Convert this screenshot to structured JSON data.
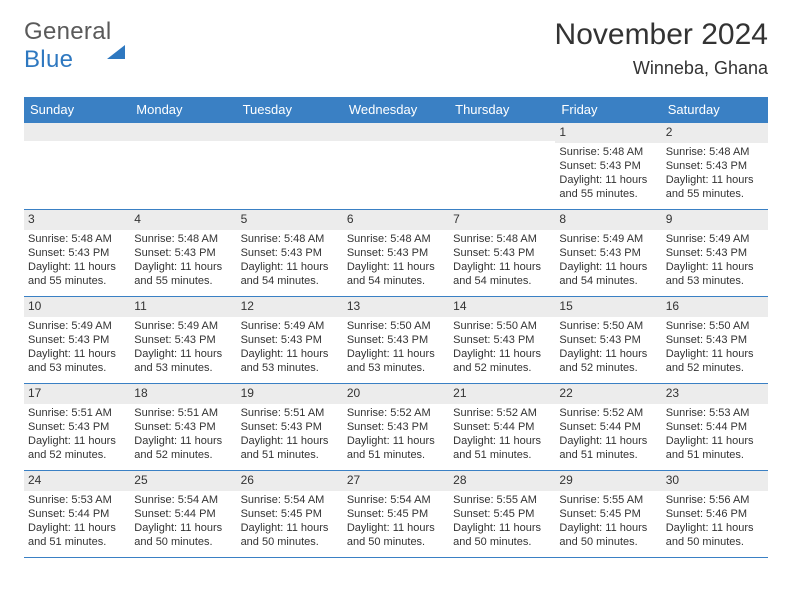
{
  "logo": {
    "word1": "General",
    "word2": "Blue"
  },
  "title": "November 2024",
  "location": "Winneba, Ghana",
  "colors": {
    "header_bg": "#3a80c4",
    "header_text": "#ffffff",
    "daynum_bg": "#ececec",
    "rule": "#3a80c4",
    "text": "#333333",
    "logo_gray": "#5a5a5a",
    "logo_blue": "#2e78c0"
  },
  "day_names": [
    "Sunday",
    "Monday",
    "Tuesday",
    "Wednesday",
    "Thursday",
    "Friday",
    "Saturday"
  ],
  "weeks": [
    [
      {
        "n": "",
        "sr": "",
        "ss": "",
        "dl": ""
      },
      {
        "n": "",
        "sr": "",
        "ss": "",
        "dl": ""
      },
      {
        "n": "",
        "sr": "",
        "ss": "",
        "dl": ""
      },
      {
        "n": "",
        "sr": "",
        "ss": "",
        "dl": ""
      },
      {
        "n": "",
        "sr": "",
        "ss": "",
        "dl": ""
      },
      {
        "n": "1",
        "sr": "Sunrise: 5:48 AM",
        "ss": "Sunset: 5:43 PM",
        "dl": "Daylight: 11 hours and 55 minutes."
      },
      {
        "n": "2",
        "sr": "Sunrise: 5:48 AM",
        "ss": "Sunset: 5:43 PM",
        "dl": "Daylight: 11 hours and 55 minutes."
      }
    ],
    [
      {
        "n": "3",
        "sr": "Sunrise: 5:48 AM",
        "ss": "Sunset: 5:43 PM",
        "dl": "Daylight: 11 hours and 55 minutes."
      },
      {
        "n": "4",
        "sr": "Sunrise: 5:48 AM",
        "ss": "Sunset: 5:43 PM",
        "dl": "Daylight: 11 hours and 55 minutes."
      },
      {
        "n": "5",
        "sr": "Sunrise: 5:48 AM",
        "ss": "Sunset: 5:43 PM",
        "dl": "Daylight: 11 hours and 54 minutes."
      },
      {
        "n": "6",
        "sr": "Sunrise: 5:48 AM",
        "ss": "Sunset: 5:43 PM",
        "dl": "Daylight: 11 hours and 54 minutes."
      },
      {
        "n": "7",
        "sr": "Sunrise: 5:48 AM",
        "ss": "Sunset: 5:43 PM",
        "dl": "Daylight: 11 hours and 54 minutes."
      },
      {
        "n": "8",
        "sr": "Sunrise: 5:49 AM",
        "ss": "Sunset: 5:43 PM",
        "dl": "Daylight: 11 hours and 54 minutes."
      },
      {
        "n": "9",
        "sr": "Sunrise: 5:49 AM",
        "ss": "Sunset: 5:43 PM",
        "dl": "Daylight: 11 hours and 53 minutes."
      }
    ],
    [
      {
        "n": "10",
        "sr": "Sunrise: 5:49 AM",
        "ss": "Sunset: 5:43 PM",
        "dl": "Daylight: 11 hours and 53 minutes."
      },
      {
        "n": "11",
        "sr": "Sunrise: 5:49 AM",
        "ss": "Sunset: 5:43 PM",
        "dl": "Daylight: 11 hours and 53 minutes."
      },
      {
        "n": "12",
        "sr": "Sunrise: 5:49 AM",
        "ss": "Sunset: 5:43 PM",
        "dl": "Daylight: 11 hours and 53 minutes."
      },
      {
        "n": "13",
        "sr": "Sunrise: 5:50 AM",
        "ss": "Sunset: 5:43 PM",
        "dl": "Daylight: 11 hours and 53 minutes."
      },
      {
        "n": "14",
        "sr": "Sunrise: 5:50 AM",
        "ss": "Sunset: 5:43 PM",
        "dl": "Daylight: 11 hours and 52 minutes."
      },
      {
        "n": "15",
        "sr": "Sunrise: 5:50 AM",
        "ss": "Sunset: 5:43 PM",
        "dl": "Daylight: 11 hours and 52 minutes."
      },
      {
        "n": "16",
        "sr": "Sunrise: 5:50 AM",
        "ss": "Sunset: 5:43 PM",
        "dl": "Daylight: 11 hours and 52 minutes."
      }
    ],
    [
      {
        "n": "17",
        "sr": "Sunrise: 5:51 AM",
        "ss": "Sunset: 5:43 PM",
        "dl": "Daylight: 11 hours and 52 minutes."
      },
      {
        "n": "18",
        "sr": "Sunrise: 5:51 AM",
        "ss": "Sunset: 5:43 PM",
        "dl": "Daylight: 11 hours and 52 minutes."
      },
      {
        "n": "19",
        "sr": "Sunrise: 5:51 AM",
        "ss": "Sunset: 5:43 PM",
        "dl": "Daylight: 11 hours and 51 minutes."
      },
      {
        "n": "20",
        "sr": "Sunrise: 5:52 AM",
        "ss": "Sunset: 5:43 PM",
        "dl": "Daylight: 11 hours and 51 minutes."
      },
      {
        "n": "21",
        "sr": "Sunrise: 5:52 AM",
        "ss": "Sunset: 5:44 PM",
        "dl": "Daylight: 11 hours and 51 minutes."
      },
      {
        "n": "22",
        "sr": "Sunrise: 5:52 AM",
        "ss": "Sunset: 5:44 PM",
        "dl": "Daylight: 11 hours and 51 minutes."
      },
      {
        "n": "23",
        "sr": "Sunrise: 5:53 AM",
        "ss": "Sunset: 5:44 PM",
        "dl": "Daylight: 11 hours and 51 minutes."
      }
    ],
    [
      {
        "n": "24",
        "sr": "Sunrise: 5:53 AM",
        "ss": "Sunset: 5:44 PM",
        "dl": "Daylight: 11 hours and 51 minutes."
      },
      {
        "n": "25",
        "sr": "Sunrise: 5:54 AM",
        "ss": "Sunset: 5:44 PM",
        "dl": "Daylight: 11 hours and 50 minutes."
      },
      {
        "n": "26",
        "sr": "Sunrise: 5:54 AM",
        "ss": "Sunset: 5:45 PM",
        "dl": "Daylight: 11 hours and 50 minutes."
      },
      {
        "n": "27",
        "sr": "Sunrise: 5:54 AM",
        "ss": "Sunset: 5:45 PM",
        "dl": "Daylight: 11 hours and 50 minutes."
      },
      {
        "n": "28",
        "sr": "Sunrise: 5:55 AM",
        "ss": "Sunset: 5:45 PM",
        "dl": "Daylight: 11 hours and 50 minutes."
      },
      {
        "n": "29",
        "sr": "Sunrise: 5:55 AM",
        "ss": "Sunset: 5:45 PM",
        "dl": "Daylight: 11 hours and 50 minutes."
      },
      {
        "n": "30",
        "sr": "Sunrise: 5:56 AM",
        "ss": "Sunset: 5:46 PM",
        "dl": "Daylight: 11 hours and 50 minutes."
      }
    ]
  ]
}
